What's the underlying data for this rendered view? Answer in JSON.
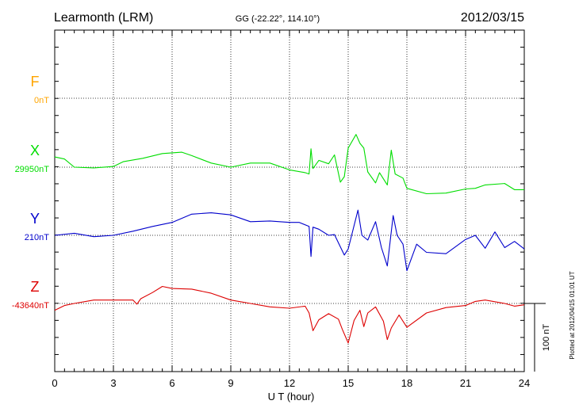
{
  "header": {
    "station": "Learmonth (LRM)",
    "coords": "GG (-22.22°, 114.10°)",
    "date": "2012/03/15"
  },
  "footer": {
    "plotted_at": "Plotted at 2012/04/15 01:01 UT"
  },
  "chart_data": {
    "type": "line",
    "title": "",
    "xlabel": "U T (hour)",
    "ylabel": "",
    "xlim": [
      0,
      24
    ],
    "x_ticks": [
      "0",
      "3",
      "6",
      "9",
      "12",
      "15",
      "18",
      "21",
      "24"
    ],
    "grid": true,
    "scale_bar": {
      "label": "100 nT",
      "value_nT": 100
    },
    "series": [
      {
        "name": "F",
        "baseline": "0nT",
        "color": "#ffa500",
        "points": []
      },
      {
        "name": "X",
        "baseline": "29950nT",
        "color": "#00dd00",
        "points": [
          [
            0.0,
            15
          ],
          [
            0.5,
            12
          ],
          [
            1.0,
            0
          ],
          [
            2.0,
            -1
          ],
          [
            3.0,
            1
          ],
          [
            3.5,
            8
          ],
          [
            4.5,
            13
          ],
          [
            5.5,
            20
          ],
          [
            6.5,
            22
          ],
          [
            7.0,
            17
          ],
          [
            8.0,
            6
          ],
          [
            9.0,
            0
          ],
          [
            10.0,
            6
          ],
          [
            11.0,
            6
          ],
          [
            12.0,
            -4
          ],
          [
            12.8,
            -8
          ],
          [
            13.0,
            -10
          ],
          [
            13.1,
            27
          ],
          [
            13.2,
            -2
          ],
          [
            13.5,
            10
          ],
          [
            14.0,
            5
          ],
          [
            14.3,
            18
          ],
          [
            14.6,
            -22
          ],
          [
            14.8,
            -14
          ],
          [
            15.0,
            28
          ],
          [
            15.4,
            48
          ],
          [
            15.6,
            35
          ],
          [
            15.8,
            28
          ],
          [
            16.0,
            -7
          ],
          [
            16.4,
            -23
          ],
          [
            16.6,
            -8
          ],
          [
            17.0,
            -26
          ],
          [
            17.2,
            25
          ],
          [
            17.4,
            -10
          ],
          [
            17.8,
            -16
          ],
          [
            18.0,
            -31
          ],
          [
            19.0,
            -39
          ],
          [
            20.0,
            -38
          ],
          [
            21.0,
            -32
          ],
          [
            21.5,
            -31
          ],
          [
            22.0,
            -26
          ],
          [
            23.0,
            -24
          ],
          [
            23.5,
            -33
          ],
          [
            24.0,
            -33
          ]
        ]
      },
      {
        "name": "Y",
        "baseline": "210nT",
        "color": "#0000cc",
        "points": [
          [
            0.0,
            0
          ],
          [
            1.0,
            3
          ],
          [
            2.0,
            -2
          ],
          [
            3.0,
            0
          ],
          [
            4.0,
            6
          ],
          [
            5.0,
            13
          ],
          [
            6.0,
            19
          ],
          [
            7.0,
            31
          ],
          [
            8.0,
            33
          ],
          [
            9.0,
            30
          ],
          [
            10.0,
            20
          ],
          [
            11.0,
            21
          ],
          [
            12.0,
            19
          ],
          [
            12.5,
            19
          ],
          [
            13.0,
            13
          ],
          [
            13.1,
            -31
          ],
          [
            13.2,
            12
          ],
          [
            13.5,
            9
          ],
          [
            14.0,
            0
          ],
          [
            14.3,
            1
          ],
          [
            14.8,
            -29
          ],
          [
            15.0,
            -20
          ],
          [
            15.5,
            37
          ],
          [
            15.7,
            0
          ],
          [
            16.0,
            -7
          ],
          [
            16.4,
            20
          ],
          [
            16.7,
            -18
          ],
          [
            17.0,
            -45
          ],
          [
            17.3,
            29
          ],
          [
            17.5,
            0
          ],
          [
            17.8,
            -13
          ],
          [
            18.0,
            -52
          ],
          [
            18.5,
            -13
          ],
          [
            19.0,
            -25
          ],
          [
            20.0,
            -27
          ],
          [
            21.0,
            -6
          ],
          [
            21.5,
            0
          ],
          [
            22.0,
            -19
          ],
          [
            22.5,
            5
          ],
          [
            23.0,
            -18
          ],
          [
            23.5,
            -9
          ],
          [
            24.0,
            -20
          ]
        ]
      },
      {
        "name": "Z",
        "baseline": "-43640nT",
        "color": "#dd0000",
        "points": [
          [
            0.0,
            -10
          ],
          [
            0.5,
            -3
          ],
          [
            1.0,
            0
          ],
          [
            2.0,
            5
          ],
          [
            3.0,
            5
          ],
          [
            4.0,
            5
          ],
          [
            4.2,
            -1
          ],
          [
            4.4,
            7
          ],
          [
            5.0,
            16
          ],
          [
            5.5,
            25
          ],
          [
            6.0,
            22
          ],
          [
            7.0,
            21
          ],
          [
            8.0,
            15
          ],
          [
            9.0,
            5
          ],
          [
            10.0,
            0
          ],
          [
            11.0,
            -5
          ],
          [
            12.0,
            -7
          ],
          [
            12.8,
            -4
          ],
          [
            13.0,
            -14
          ],
          [
            13.2,
            -40
          ],
          [
            13.5,
            -24
          ],
          [
            14.0,
            -15
          ],
          [
            14.5,
            -23
          ],
          [
            14.7,
            -38
          ],
          [
            15.0,
            -58
          ],
          [
            15.3,
            -25
          ],
          [
            15.6,
            -10
          ],
          [
            15.8,
            -34
          ],
          [
            16.0,
            -14
          ],
          [
            16.4,
            -5
          ],
          [
            16.8,
            -26
          ],
          [
            17.0,
            -53
          ],
          [
            17.2,
            -36
          ],
          [
            17.6,
            -17
          ],
          [
            18.0,
            -35
          ],
          [
            19.0,
            -14
          ],
          [
            20.0,
            -6
          ],
          [
            21.0,
            -3
          ],
          [
            21.5,
            3
          ],
          [
            22.0,
            5
          ],
          [
            23.0,
            0
          ],
          [
            23.5,
            -4
          ],
          [
            24.0,
            -2
          ]
        ]
      }
    ]
  }
}
